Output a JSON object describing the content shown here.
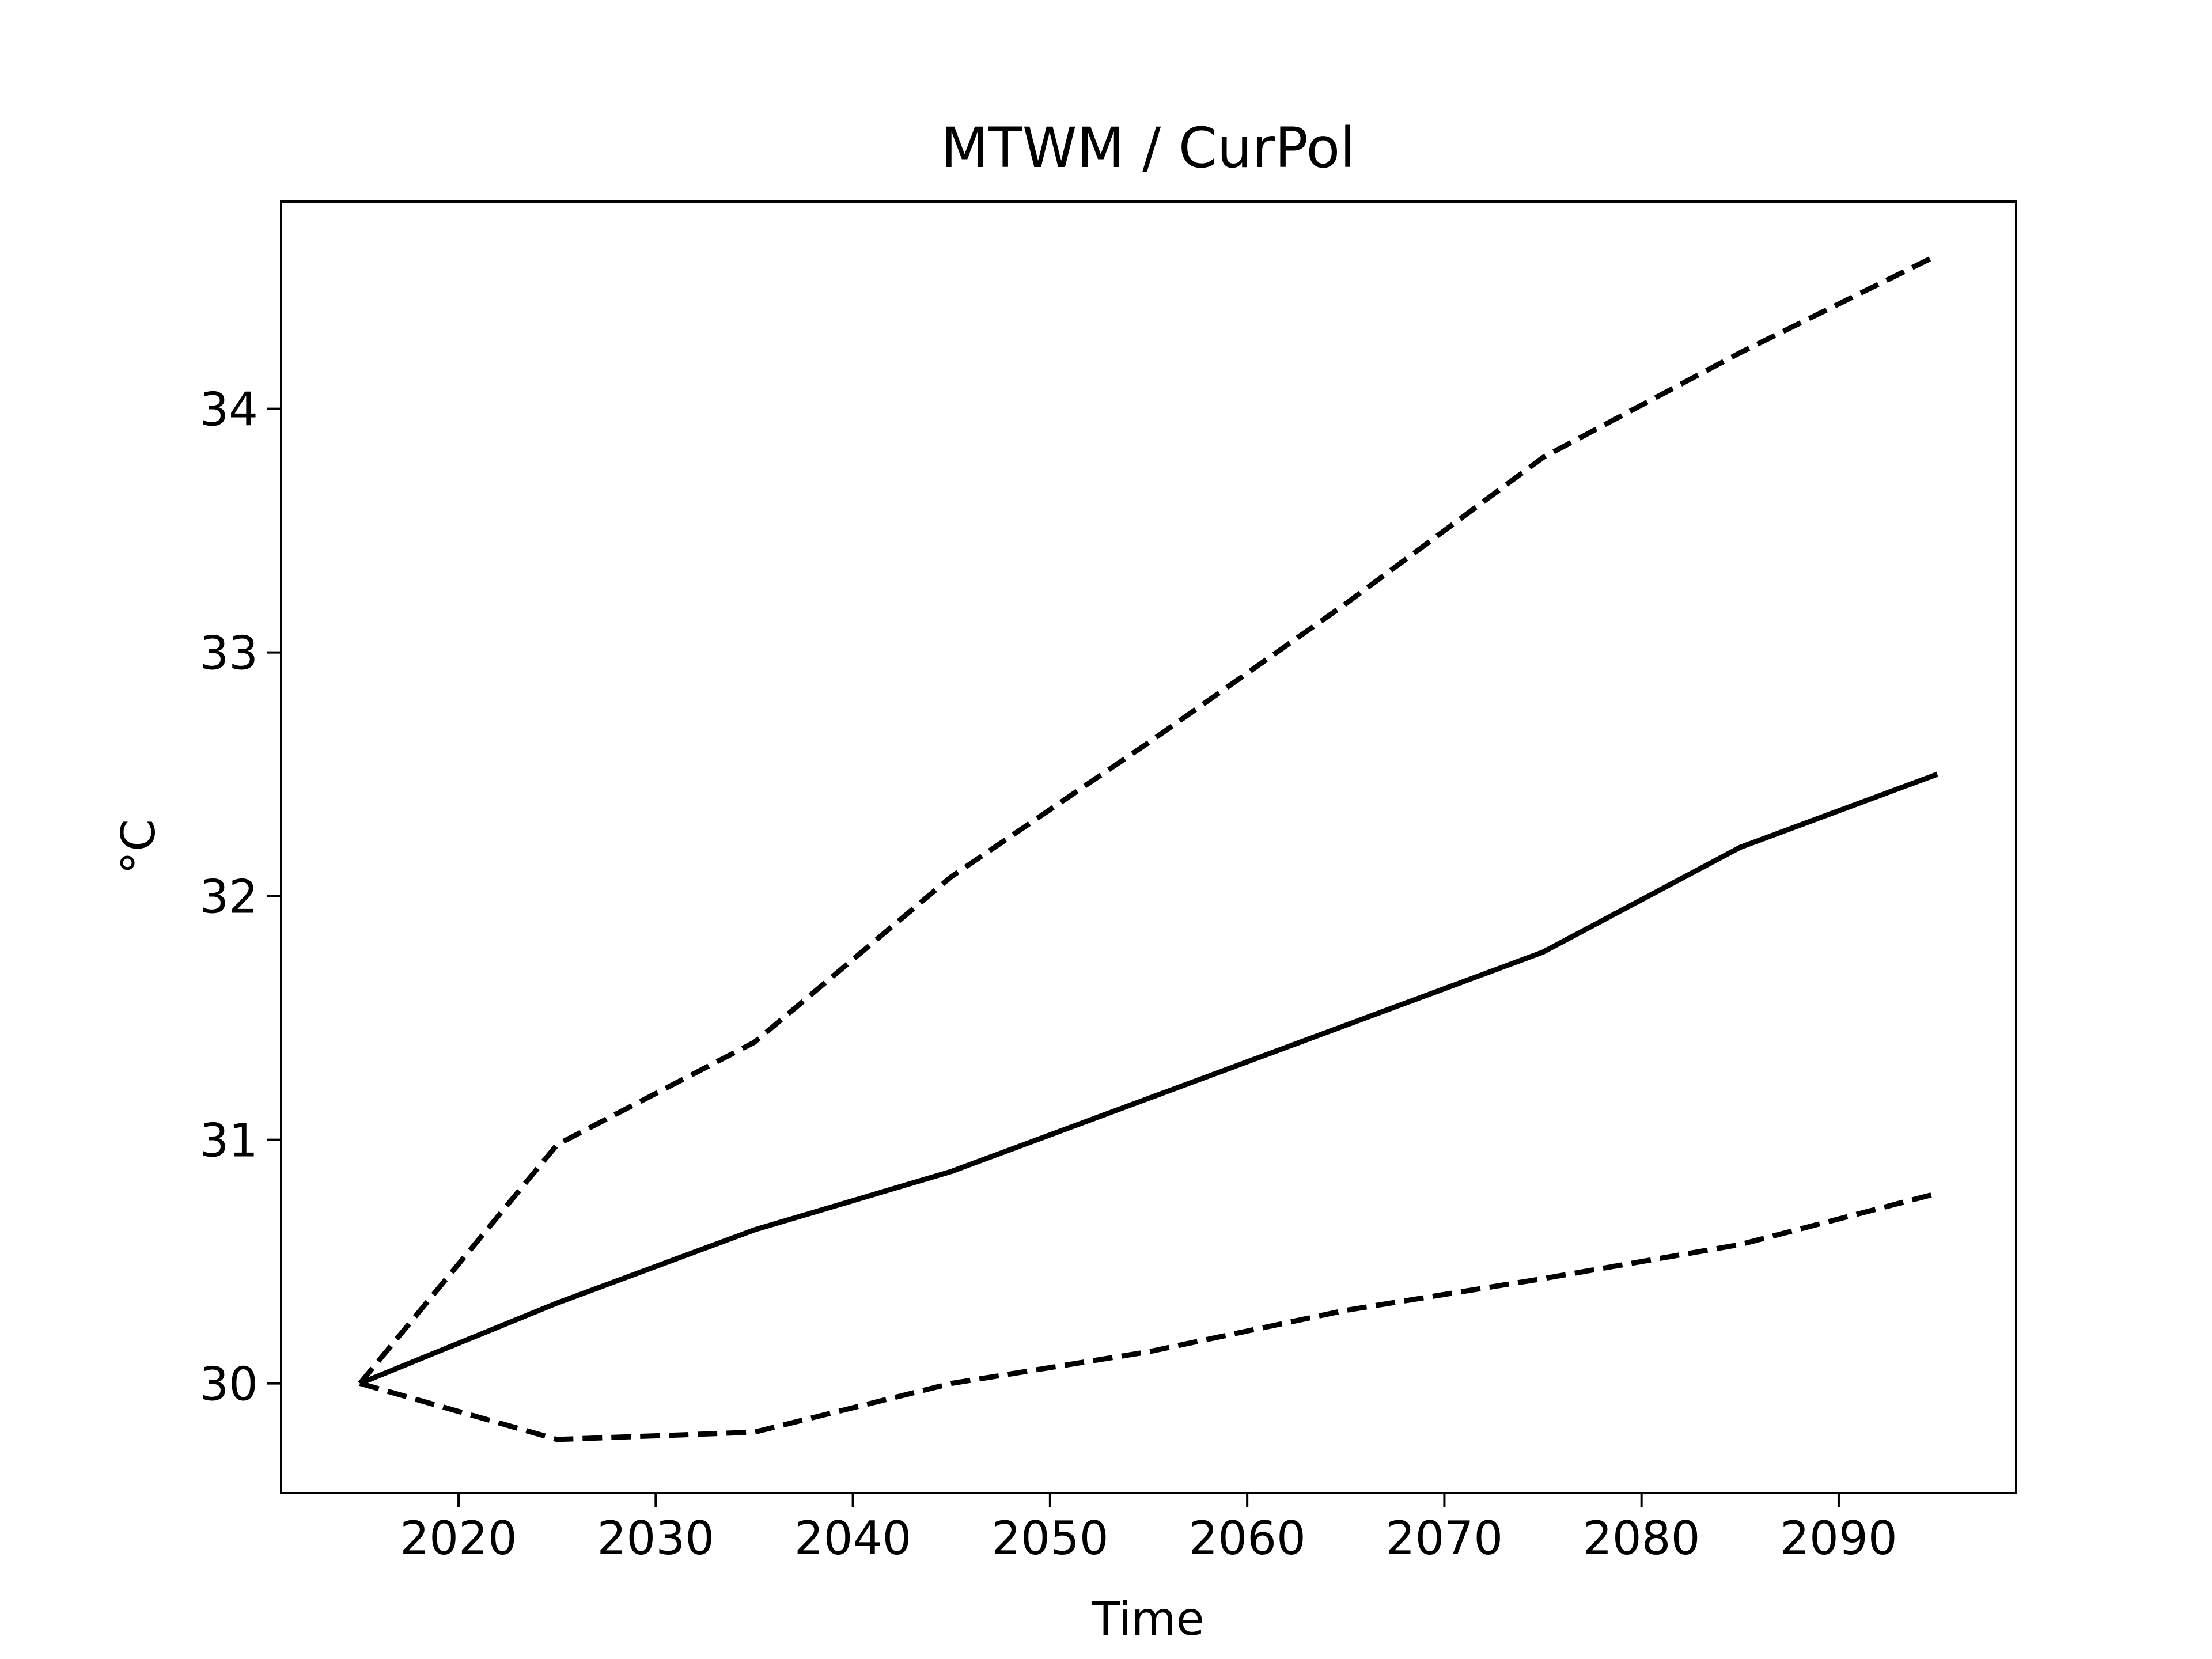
{
  "chart_data": {
    "type": "line",
    "title": "MTWM / CurPol",
    "xlabel": "Time",
    "ylabel": "°C",
    "xlim": [
      2011,
      2099
    ],
    "ylim": [
      29.55,
      34.85
    ],
    "x_ticks": [
      2020,
      2030,
      2040,
      2050,
      2060,
      2070,
      2080,
      2090
    ],
    "y_ticks": [
      30,
      31,
      32,
      33,
      34
    ],
    "grid": false,
    "legend": "none",
    "x": [
      2015,
      2025,
      2035,
      2045,
      2055,
      2065,
      2075,
      2085,
      2095
    ],
    "series": [
      {
        "style": "solid",
        "color": "#000000",
        "values": [
          30.0,
          30.33,
          30.63,
          30.87,
          31.17,
          31.47,
          31.77,
          32.2,
          32.5
        ]
      },
      {
        "style": "dashed",
        "color": "#000000",
        "values": [
          30.0,
          30.98,
          31.4,
          32.08,
          32.63,
          33.2,
          33.8,
          34.23,
          34.63
        ]
      },
      {
        "style": "dashed",
        "color": "#000000",
        "values": [
          30.0,
          29.77,
          29.8,
          30.0,
          30.13,
          30.3,
          30.43,
          30.57,
          30.78
        ]
      }
    ]
  }
}
